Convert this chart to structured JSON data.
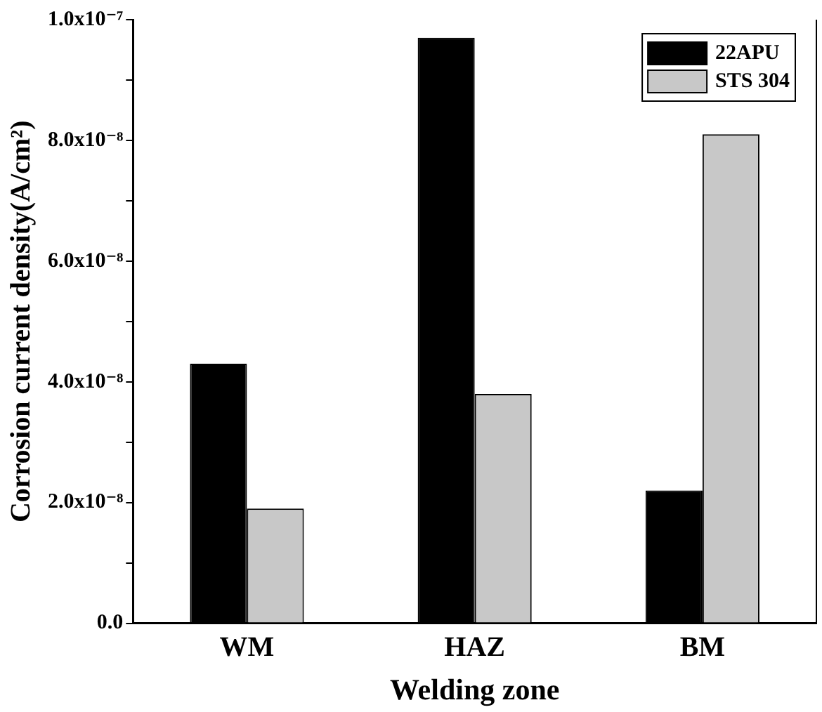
{
  "chart_data": {
    "type": "bar",
    "xlabel": "Welding zone",
    "ylabel": "Corrosion current density(A/cm²)",
    "categories": [
      "WM",
      "HAZ",
      "BM"
    ],
    "series": [
      {
        "name": "22APU",
        "color": "#000000",
        "values": [
          4.3e-08,
          9.7e-08,
          2.2e-08
        ]
      },
      {
        "name": "STS 304",
        "color": "#c8c8c8",
        "values": [
          1.9e-08,
          3.8e-08,
          8.1e-08
        ]
      }
    ],
    "ylim": [
      0,
      1e-07
    ],
    "yticks": [
      {
        "value": 0,
        "label": "0.0"
      },
      {
        "value": 1e-08,
        "label": null
      },
      {
        "value": 2e-08,
        "label": "2.0x10⁻⁸"
      },
      {
        "value": 3e-08,
        "label": null
      },
      {
        "value": 4e-08,
        "label": "4.0x10⁻⁸"
      },
      {
        "value": 5e-08,
        "label": null
      },
      {
        "value": 6e-08,
        "label": "6.0x10⁻⁸"
      },
      {
        "value": 7e-08,
        "label": null
      },
      {
        "value": 8e-08,
        "label": "8.0x10⁻⁸"
      },
      {
        "value": 9e-08,
        "label": null
      },
      {
        "value": 1e-07,
        "label": "1.0x10⁻⁷"
      }
    ],
    "legend": "top right"
  }
}
